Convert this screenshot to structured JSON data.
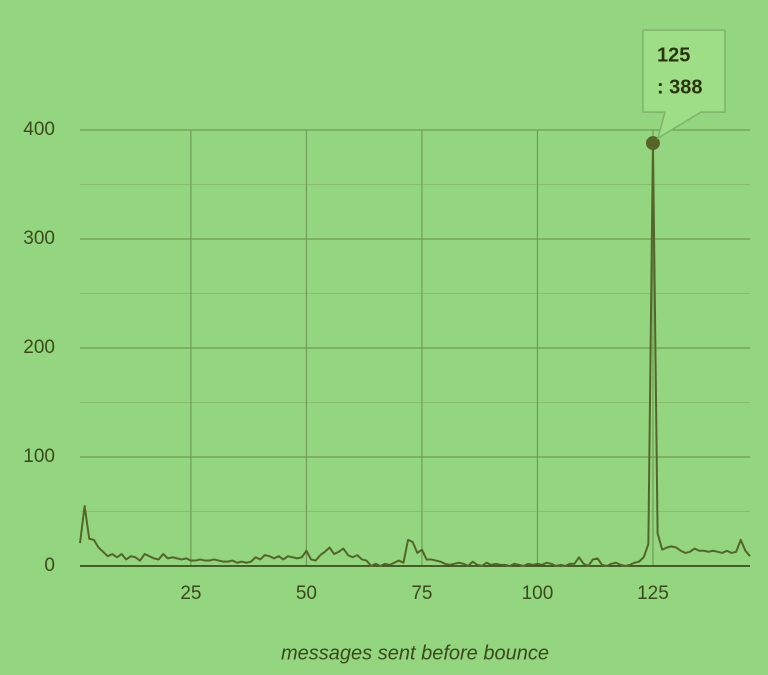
{
  "chart_data": {
    "type": "line",
    "x_label": "messages sent before bounce",
    "x": [
      1,
      2,
      3,
      4,
      5,
      6,
      7,
      8,
      9,
      10,
      11,
      12,
      13,
      14,
      15,
      16,
      17,
      18,
      19,
      20,
      21,
      22,
      23,
      24,
      25,
      26,
      27,
      28,
      29,
      30,
      31,
      32,
      33,
      34,
      35,
      36,
      37,
      38,
      39,
      40,
      41,
      42,
      43,
      44,
      45,
      46,
      47,
      48,
      49,
      50,
      51,
      52,
      53,
      54,
      55,
      56,
      57,
      58,
      59,
      60,
      61,
      62,
      63,
      64,
      65,
      66,
      67,
      68,
      69,
      70,
      71,
      72,
      73,
      74,
      75,
      76,
      77,
      78,
      79,
      80,
      81,
      82,
      83,
      84,
      85,
      86,
      87,
      88,
      89,
      90,
      91,
      92,
      93,
      94,
      95,
      96,
      97,
      98,
      99,
      100,
      101,
      102,
      103,
      104,
      105,
      106,
      107,
      108,
      109,
      110,
      111,
      112,
      113,
      114,
      115,
      116,
      117,
      118,
      119,
      120,
      121,
      122,
      123,
      124,
      125,
      126,
      127,
      128,
      129,
      130,
      131,
      132,
      133,
      134,
      135,
      136,
      137,
      138,
      139,
      140,
      141,
      142,
      143,
      144,
      145,
      146
    ],
    "series": [
      {
        "color": "#55652a",
        "values": [
          21,
          55,
          25,
          24,
          17,
          13,
          9,
          11,
          8,
          11,
          6,
          9,
          8,
          5,
          11,
          9,
          7,
          6,
          11,
          7,
          8,
          7,
          6,
          7,
          5,
          5,
          6,
          5,
          5,
          6,
          5,
          4,
          4,
          5,
          3,
          4,
          3,
          4,
          8,
          6,
          10,
          9,
          7,
          9,
          6,
          9,
          8,
          7,
          8,
          14,
          6,
          5,
          10,
          13,
          17,
          11,
          13,
          16,
          10,
          8,
          10,
          6,
          5,
          0,
          2,
          0,
          2,
          1,
          3,
          5,
          3,
          24,
          22,
          12,
          15,
          6,
          6,
          5,
          4,
          2,
          1,
          2,
          3,
          2,
          0,
          4,
          1,
          0,
          3,
          1,
          2,
          1,
          1,
          0,
          2,
          1,
          0,
          2,
          1,
          2,
          1,
          3,
          2,
          0,
          1,
          0,
          2,
          2,
          8,
          2,
          0,
          6,
          7,
          1,
          0,
          2,
          3,
          1,
          0,
          1,
          3,
          4,
          8,
          20,
          388,
          30,
          15,
          17,
          18,
          17,
          14,
          12,
          13,
          16,
          14,
          14,
          13,
          14,
          13,
          12,
          14,
          12,
          13,
          24,
          14,
          9
        ]
      }
    ],
    "xlim": [
      1,
      146
    ],
    "ylim": [
      0,
      400
    ],
    "xticks": [
      25,
      50,
      75,
      100,
      125
    ],
    "yticks": [
      0,
      100,
      200,
      300,
      400
    ],
    "minor_yticks": [
      50,
      150,
      250,
      350
    ],
    "grid": true,
    "tooltip": {
      "index": 124,
      "title": "125",
      "text": ": 388"
    }
  }
}
